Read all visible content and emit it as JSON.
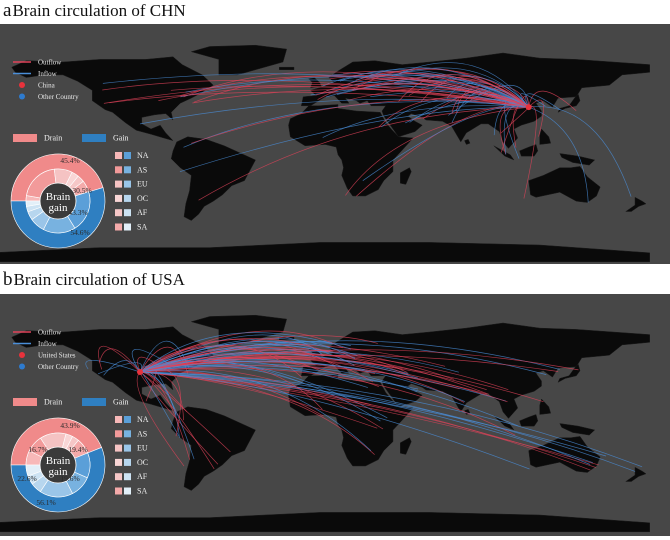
{
  "panels": [
    {
      "letter": "a",
      "title": "Brain circulation of CHN",
      "legend": {
        "outflow": "Outflow",
        "inflow": "Inflow",
        "home": "China",
        "other": "Other Country"
      },
      "hub": {
        "lon": 114,
        "lat": 35
      },
      "donut": {
        "drain_label": "Drain",
        "gain_label": "Gain",
        "center": [
          "Brain",
          "gain"
        ],
        "drain_pct": 45.4,
        "gain_pct": 54.6,
        "labels": [
          "45.4%",
          "30.5%",
          "43.3%",
          "54.6%"
        ],
        "inner_drain": [
          6,
          45,
          20,
          8,
          8,
          13
        ],
        "inner_gain": [
          38,
          30,
          14,
          8,
          5,
          5
        ]
      },
      "continents": [
        "NA",
        "AS",
        "EU",
        "OC",
        "AF",
        "SA"
      ]
    },
    {
      "letter": "b",
      "title": "Brain circulation of USA",
      "legend": {
        "outflow": "Outflow",
        "inflow": "Inflow",
        "home": "United States",
        "other": "Other Country"
      },
      "hub": {
        "lon": -98,
        "lat": 39
      },
      "donut": {
        "drain_label": "Drain",
        "gain_label": "Gain",
        "center": [
          "Brain",
          "gain"
        ],
        "drain_pct": 43.9,
        "gain_pct": 56.1,
        "labels": [
          "43.9%",
          "16.7%",
          "19.4%",
          "22.6%",
          "19.6%",
          "56.1%"
        ],
        "inner_drain": [
          16.7,
          19.4,
          30,
          8,
          8,
          18
        ],
        "inner_gain": [
          22.6,
          19.6,
          30,
          10,
          8,
          10
        ]
      },
      "continents": [
        "NA",
        "AS",
        "EU",
        "OC",
        "AF",
        "SA"
      ]
    }
  ],
  "colors": {
    "ocean": "#474747",
    "land": "#0a0a0a",
    "outflow": "#e0435a",
    "inflow": "#4a8ed8",
    "home_dot": "#e8323c",
    "other_dot": "#2e7bcf",
    "drain": "#f08a8a",
    "gain": "#2f7fc1",
    "center": "#3a3a3a"
  }
}
